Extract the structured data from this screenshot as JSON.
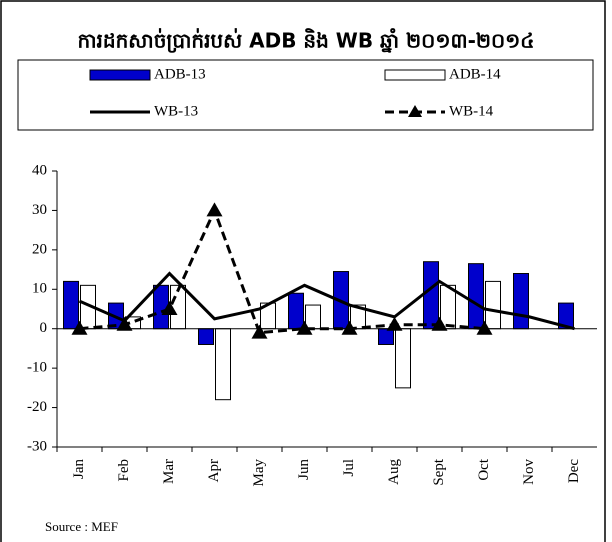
{
  "chart_data": {
    "type": "bar-line",
    "title": "ការដកសាច់ប្រាក់របស់ ADB និង WB ឆ្នាំ ២០១៣-២០១៤",
    "categories": [
      "Jan",
      "Feb",
      "Mar",
      "Apr",
      "May",
      "Jun",
      "Jul",
      "Aug",
      "Sept",
      "Oct",
      "Nov",
      "Dec"
    ],
    "series": [
      {
        "name": "ADB-13",
        "type": "bar",
        "color": "#0000cc",
        "values": [
          12,
          6.5,
          11,
          -4,
          null,
          9,
          14.5,
          -4,
          17,
          16.5,
          14,
          6.5
        ]
      },
      {
        "name": "ADB-14",
        "type": "bar",
        "color": "#ffffff",
        "values": [
          11,
          3,
          11,
          -18,
          6.5,
          6,
          6,
          -15,
          11,
          12,
          null,
          null
        ]
      },
      {
        "name": "WB-13",
        "type": "line",
        "color": "#000000",
        "values": [
          7,
          2,
          14,
          2.5,
          5,
          11,
          6,
          3,
          12,
          5,
          3,
          0
        ]
      },
      {
        "name": "WB-14",
        "type": "dashed-line",
        "color": "#000000",
        "values": [
          0,
          1,
          5,
          30,
          -1,
          0,
          0,
          1,
          1,
          0,
          null,
          null
        ]
      }
    ],
    "ylim": [
      -30,
      40
    ],
    "yticks": [
      -30,
      -20,
      -10,
      0,
      10,
      20,
      30,
      40
    ],
    "source": "Source : MEF"
  }
}
